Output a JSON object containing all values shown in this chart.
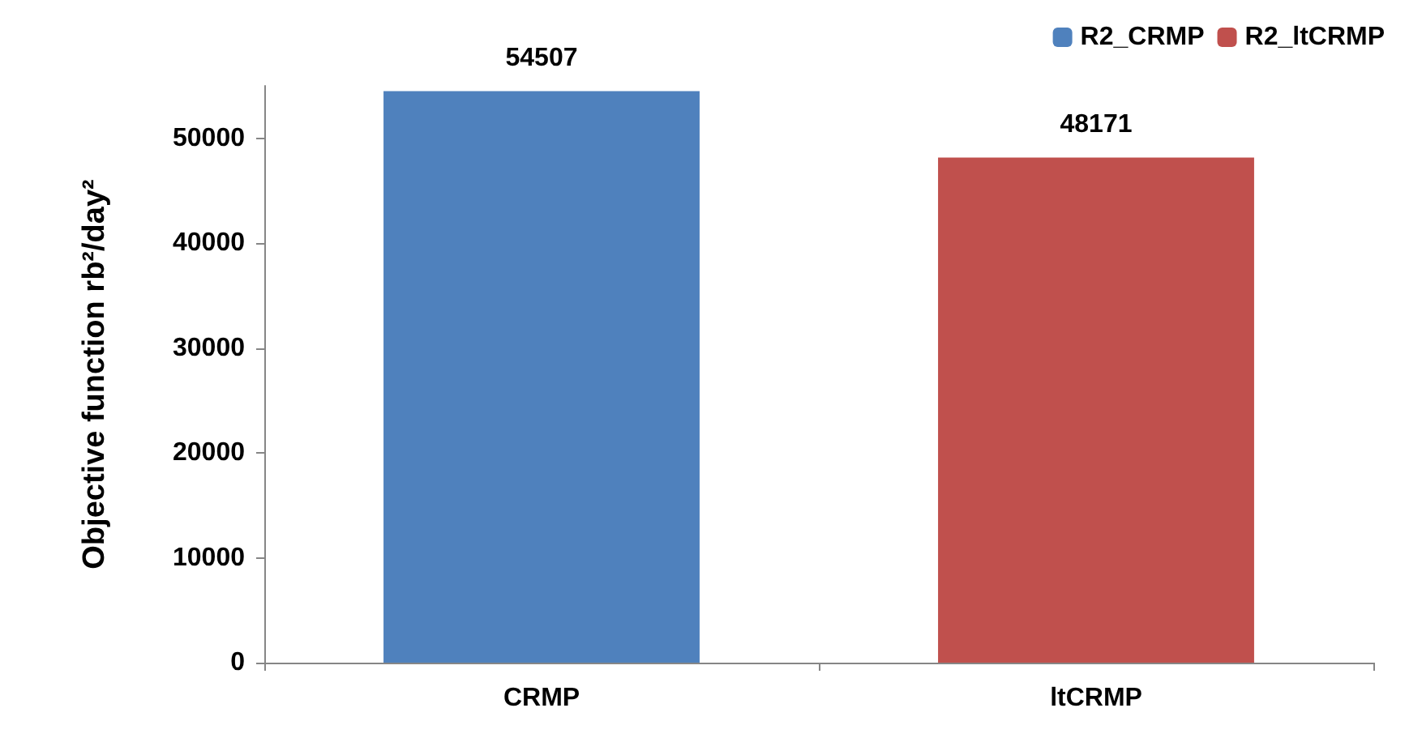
{
  "chart_data": {
    "type": "bar",
    "ylabel": "Objective function rb²/day²",
    "categories": [
      "CRMP",
      "ltCRMP"
    ],
    "series": [
      {
        "name": "R2_CRMP",
        "color": "#4f81bd",
        "values": [
          54507,
          null
        ]
      },
      {
        "name": "R2_ltCRMP",
        "color": "#c0504d",
        "values": [
          null,
          48171
        ]
      }
    ],
    "ylim": [
      0,
      55000
    ],
    "yticks": [
      0,
      10000,
      20000,
      30000,
      40000,
      50000
    ],
    "data_labels": true,
    "legend": "top right",
    "grid": false
  }
}
